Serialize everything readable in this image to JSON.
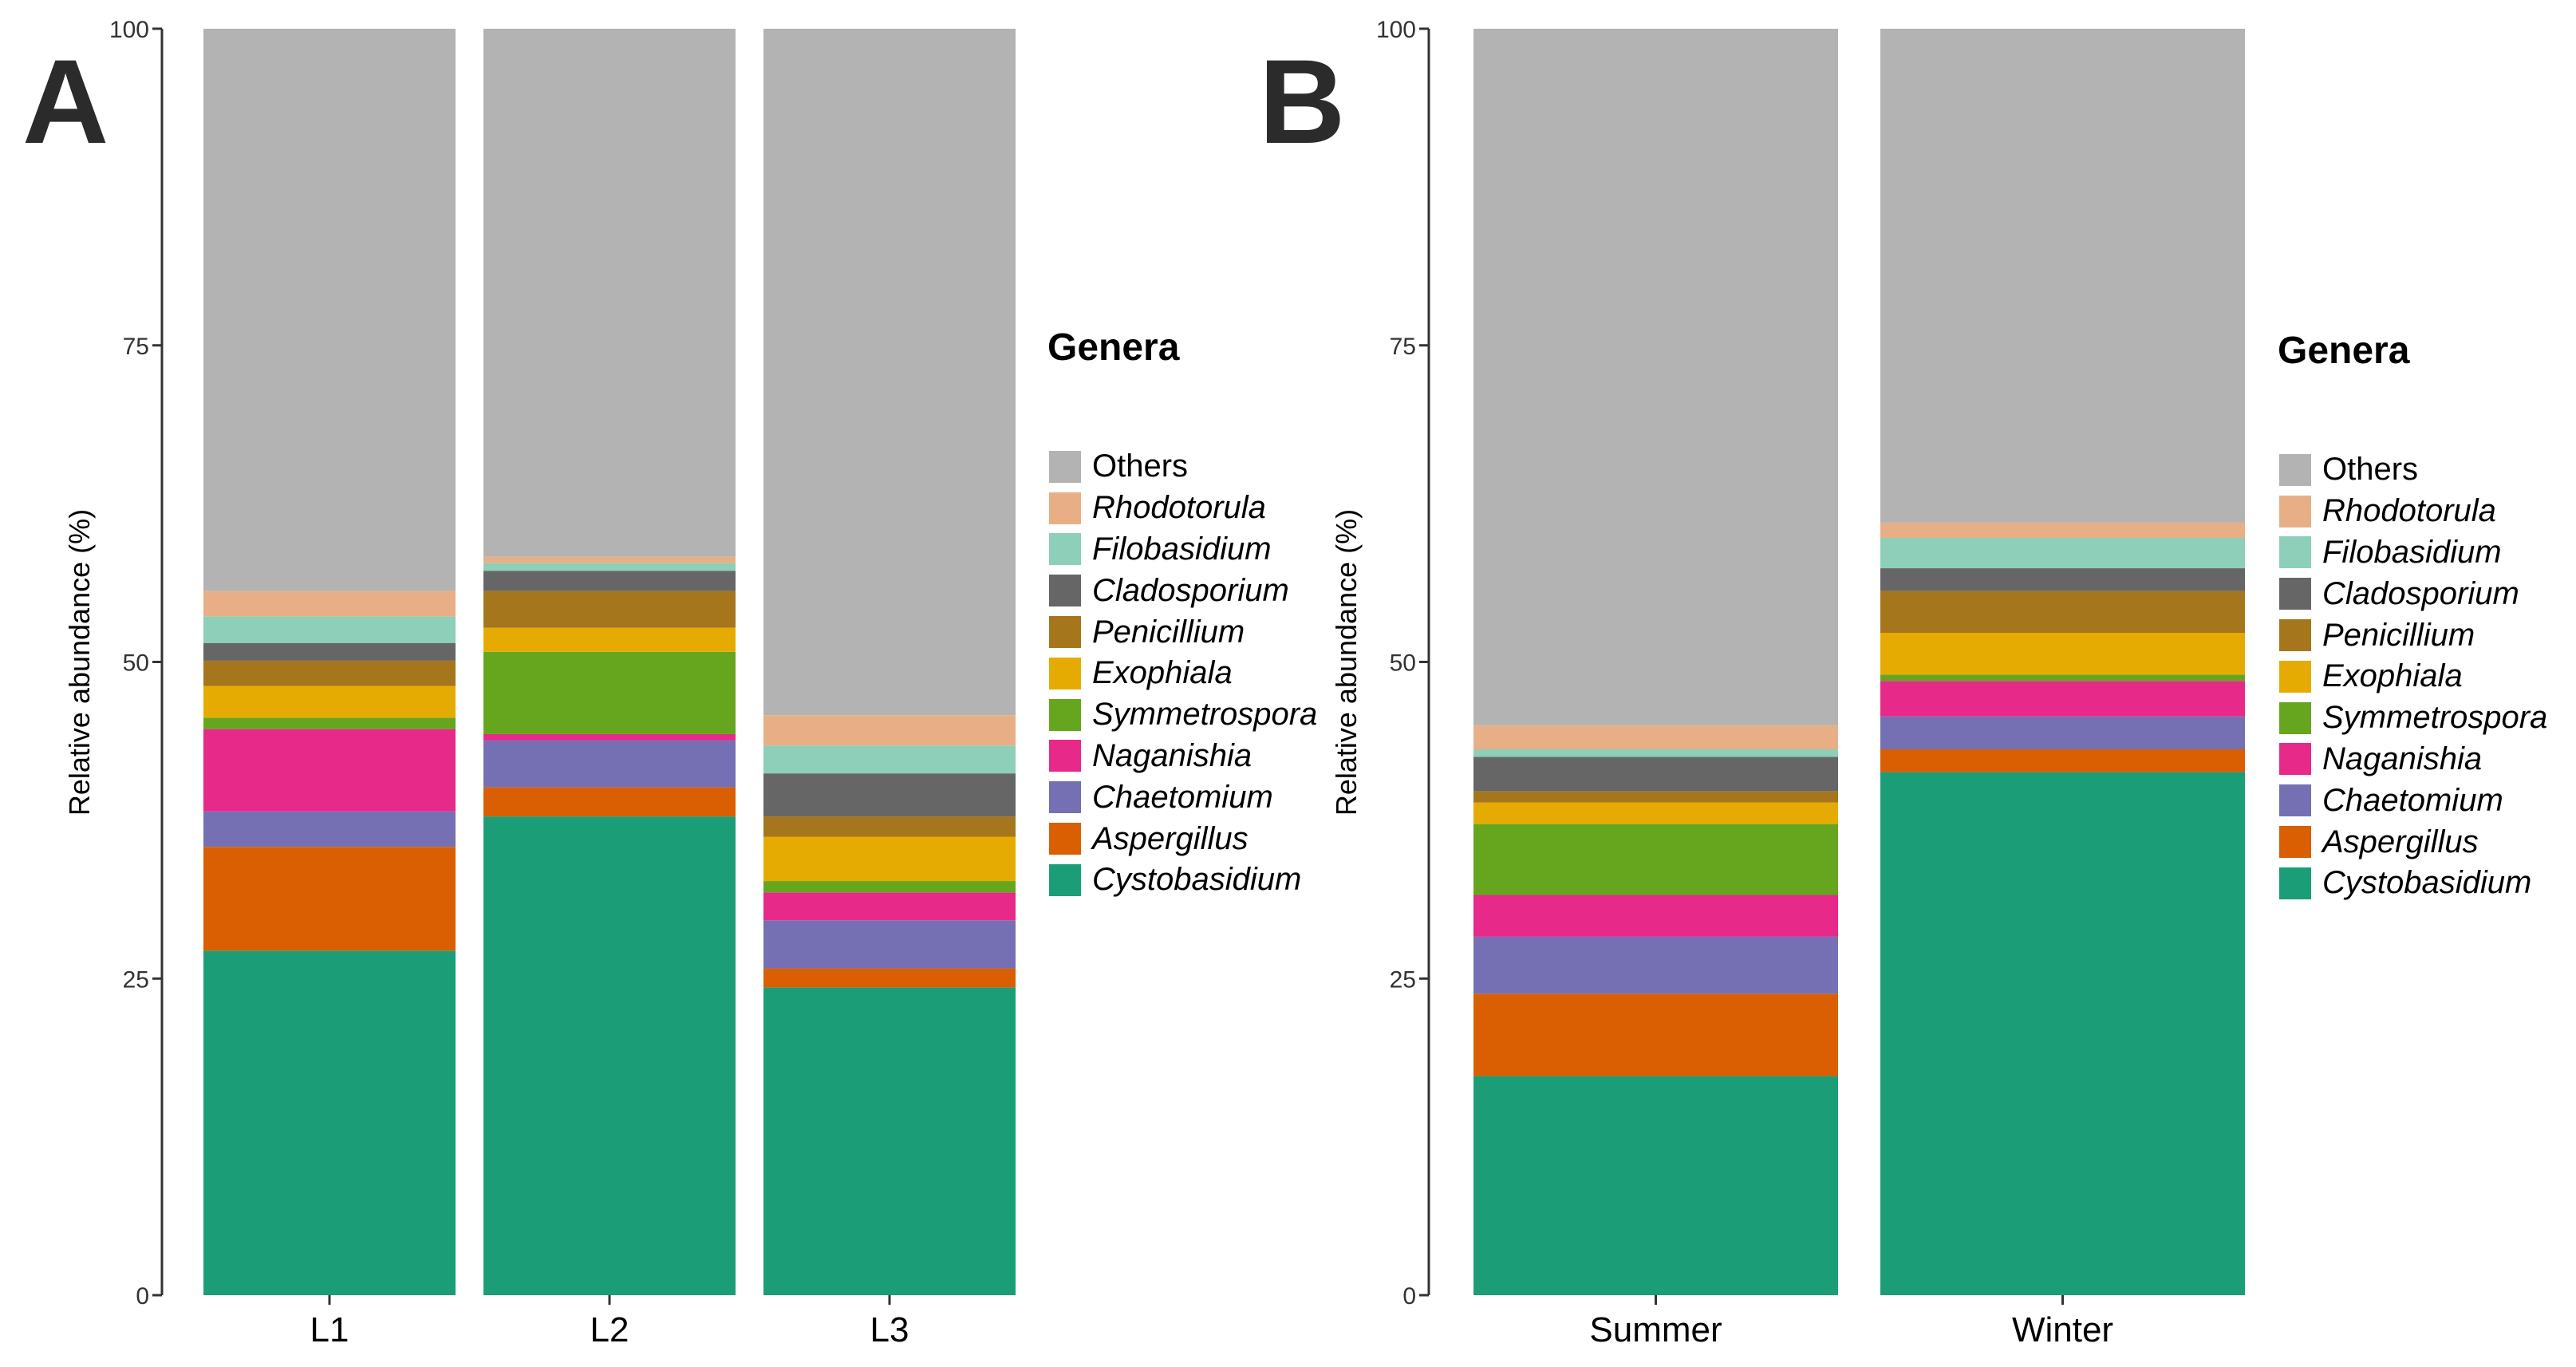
{
  "panels": [
    {
      "letter": "A",
      "legend_title": "Genera"
    },
    {
      "letter": "B",
      "legend_title": "Genera"
    }
  ],
  "genera": [
    {
      "name": "Others",
      "color": "#b3b3b3",
      "italic": false
    },
    {
      "name": "Rhodotorula",
      "color": "#e8af87",
      "italic": true
    },
    {
      "name": "Filobasidium",
      "color": "#8dcfb8",
      "italic": true
    },
    {
      "name": "Cladosporium",
      "color": "#666666",
      "italic": true
    },
    {
      "name": "Penicillium",
      "color": "#a6761d",
      "italic": true
    },
    {
      "name": "Exophiala",
      "color": "#e6ab02",
      "italic": true
    },
    {
      "name": "Symmetrospora",
      "color": "#66a61e",
      "italic": true
    },
    {
      "name": "Naganishia",
      "color": "#e7298a",
      "italic": true
    },
    {
      "name": "Chaetomium",
      "color": "#7570b3",
      "italic": true
    },
    {
      "name": "Aspergillus",
      "color": "#d95f02",
      "italic": true
    },
    {
      "name": "Cystobasidium",
      "color": "#1b9e77",
      "italic": true
    }
  ],
  "chart_data": [
    {
      "type": "bar",
      "stacked": true,
      "panel": "A",
      "ylabel": "Relative abundance (%)",
      "xlabel": "",
      "ylim": [
        0,
        100
      ],
      "yticks": [
        "0",
        "25",
        "50",
        "75",
        "100"
      ],
      "categories": [
        "L1",
        "L2",
        "L3"
      ],
      "legend_title": "Genera",
      "legend_position": "right",
      "series": [
        {
          "name": "Cystobasidium",
          "values": [
            27.2,
            37.8,
            24.3
          ]
        },
        {
          "name": "Aspergillus",
          "values": [
            8.2,
            2.3,
            1.5
          ]
        },
        {
          "name": "Chaetomium",
          "values": [
            2.8,
            3.7,
            3.8
          ]
        },
        {
          "name": "Naganishia",
          "values": [
            6.5,
            0.5,
            2.2
          ]
        },
        {
          "name": "Symmetrospora",
          "values": [
            0.9,
            6.5,
            0.9
          ]
        },
        {
          "name": "Exophiala",
          "values": [
            2.5,
            1.9,
            3.5
          ]
        },
        {
          "name": "Penicillium",
          "values": [
            2.0,
            2.9,
            1.6
          ]
        },
        {
          "name": "Cladosporium",
          "values": [
            1.4,
            1.6,
            3.4
          ]
        },
        {
          "name": "Filobasidium",
          "values": [
            2.1,
            0.6,
            2.2
          ]
        },
        {
          "name": "Rhodotorula",
          "values": [
            2.0,
            0.5,
            2.4
          ]
        },
        {
          "name": "Others",
          "values": [
            44.4,
            41.7,
            54.2
          ]
        }
      ]
    },
    {
      "type": "bar",
      "stacked": true,
      "panel": "B",
      "ylabel": "Relative abundance (%)",
      "xlabel": "",
      "ylim": [
        0,
        100
      ],
      "yticks": [
        "0",
        "25",
        "50",
        "75",
        "100"
      ],
      "categories": [
        "Summer",
        "Winter"
      ],
      "legend_title": "Genera",
      "legend_position": "right",
      "series": [
        {
          "name": "Cystobasidium",
          "values": [
            17.3,
            41.3
          ]
        },
        {
          "name": "Aspergillus",
          "values": [
            6.5,
            1.8
          ]
        },
        {
          "name": "Chaetomium",
          "values": [
            4.5,
            2.6
          ]
        },
        {
          "name": "Naganishia",
          "values": [
            3.3,
            2.8
          ]
        },
        {
          "name": "Symmetrospora",
          "values": [
            5.6,
            0.5
          ]
        },
        {
          "name": "Exophiala",
          "values": [
            1.7,
            3.3
          ]
        },
        {
          "name": "Penicillium",
          "values": [
            0.9,
            3.3
          ]
        },
        {
          "name": "Cladosporium",
          "values": [
            2.7,
            1.8
          ]
        },
        {
          "name": "Filobasidium",
          "values": [
            0.6,
            2.4
          ]
        },
        {
          "name": "Rhodotorula",
          "values": [
            1.9,
            1.2
          ]
        },
        {
          "name": "Others",
          "values": [
            55.0,
            39.0
          ]
        }
      ]
    }
  ]
}
